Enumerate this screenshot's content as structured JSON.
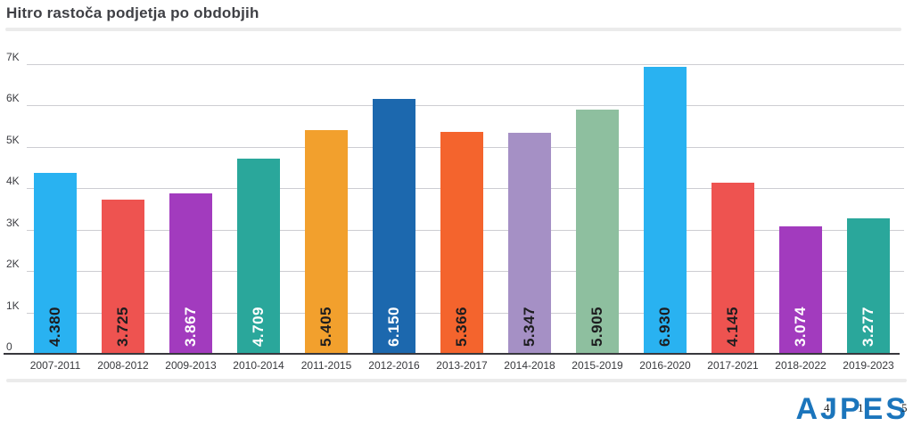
{
  "title": "Hitro rastoča podjetja po obdobjih",
  "chart_data": {
    "type": "bar",
    "title": "Hitro rastoča podjetja po obdobjih",
    "categories": [
      "2007-2011",
      "2008-2012",
      "2009-2013",
      "2010-2014",
      "2011-2015",
      "2012-2016",
      "2013-2017",
      "2014-2018",
      "2015-2019",
      "2016-2020",
      "2017-2021",
      "2018-2022",
      "2019-2023"
    ],
    "values": [
      4380,
      3725,
      3867,
      4709,
      5405,
      6150,
      5366,
      5347,
      5905,
      6930,
      4145,
      3074,
      3277
    ],
    "value_labels": [
      "4.380",
      "3.725",
      "3.867",
      "4.709",
      "5.405",
      "6.150",
      "5.366",
      "5.347",
      "5.905",
      "6.930",
      "4.145",
      "3.074",
      "3.277"
    ],
    "bar_colors": [
      "#29b2f1",
      "#ee5350",
      "#a23bbe",
      "#2aa79b",
      "#f2a02d",
      "#1c68ae",
      "#f4642d",
      "#a590c5",
      "#8ebf9f",
      "#29b2f1",
      "#ee5350",
      "#a23bbe",
      "#2aa79b"
    ],
    "value_label_colors": [
      "#1d1d1f",
      "#1d1d1f",
      "#ffffff",
      "#ffffff",
      "#1d1d1f",
      "#ffffff",
      "#1d1d1f",
      "#1d1d1f",
      "#1d1d1f",
      "#1d1d1f",
      "#1d1d1f",
      "#ffffff",
      "#ffffff"
    ],
    "xlabel": "",
    "ylabel": "",
    "ylim": [
      0,
      7000
    ],
    "yticks": [
      "0",
      "1K",
      "2K",
      "3K",
      "4K",
      "5K",
      "6K",
      "7K"
    ],
    "grid": "horizontal",
    "legend": "none"
  },
  "footer": {
    "logo_text": "AJPES",
    "logo_color": "#1b75bc",
    "overlay_digits": [
      "4",
      "1",
      "5"
    ]
  }
}
